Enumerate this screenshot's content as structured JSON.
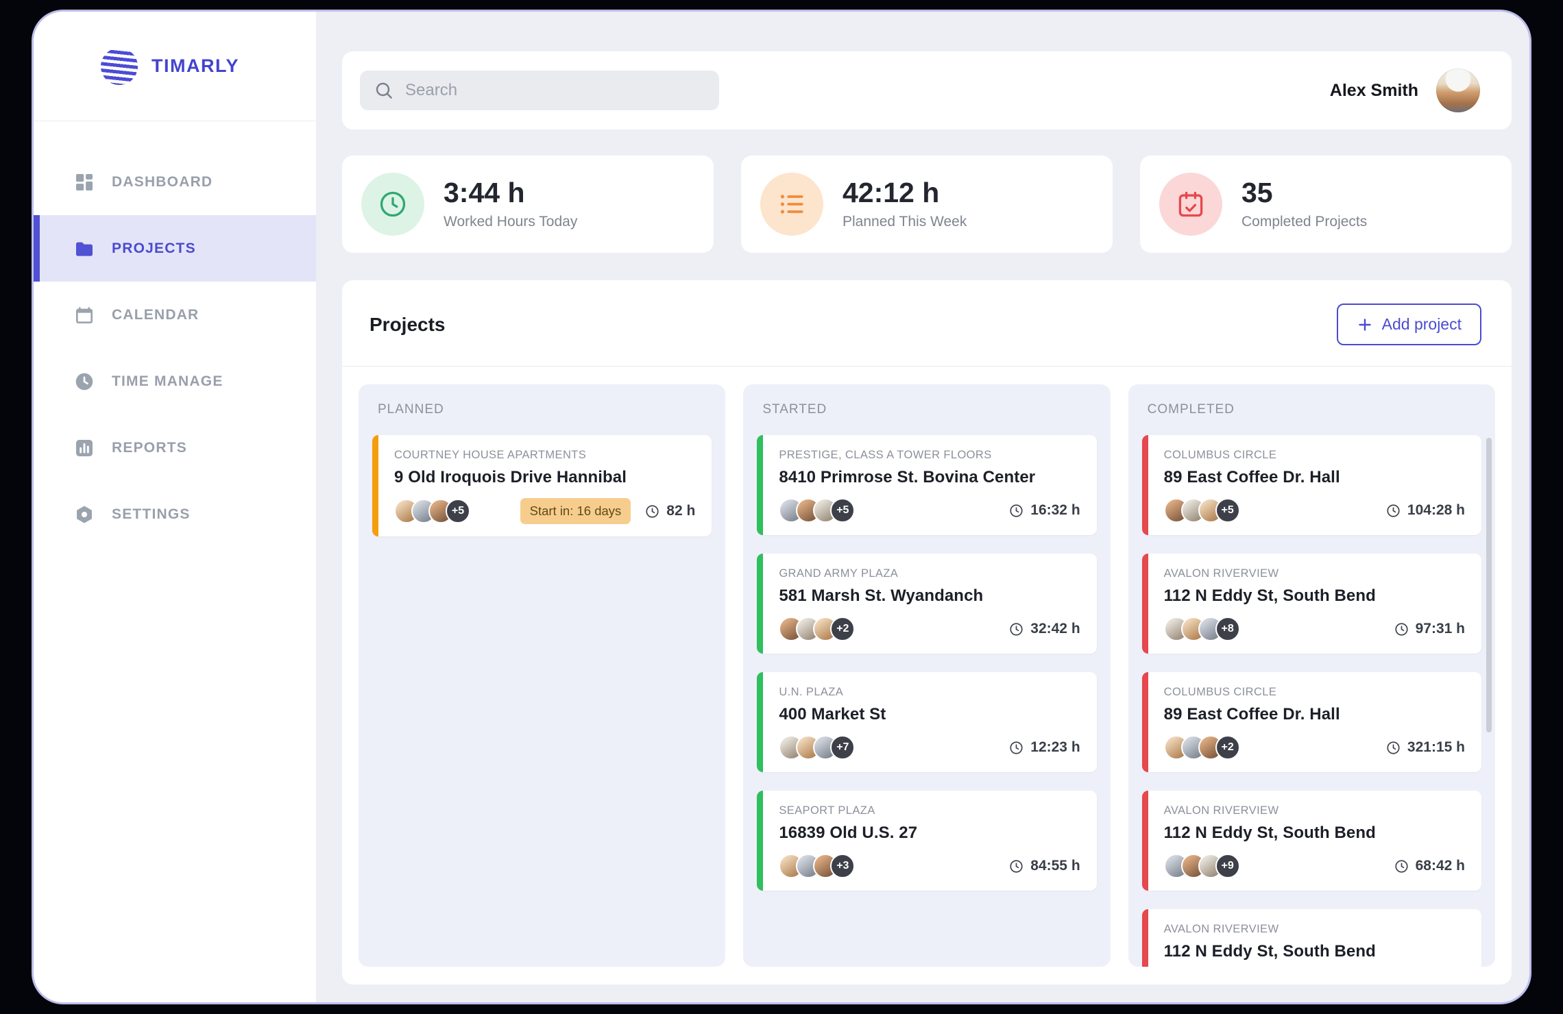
{
  "brand": {
    "name": "TIMARLY"
  },
  "topbar": {
    "search_placeholder": "Search",
    "user_name": "Alex Smith"
  },
  "sidebar": {
    "active_index": 1,
    "items": [
      {
        "label": "DASHBOARD"
      },
      {
        "label": "PROJECTS"
      },
      {
        "label": "CALENDAR"
      },
      {
        "label": "TIME MANAGE"
      },
      {
        "label": "REPORTS"
      },
      {
        "label": "SETTINGS"
      }
    ]
  },
  "stats": [
    {
      "value": "3:44 h",
      "label": "Worked Hours Today",
      "icon": "clock-icon",
      "icon_color": "#2fa872",
      "icon_bg": "#ddf3e6"
    },
    {
      "value": "42:12 h",
      "label": "Planned This Week",
      "icon": "list-icon",
      "icon_color": "#f08c3a",
      "icon_bg": "#fde4cd"
    },
    {
      "value": "35",
      "label": "Completed Projects",
      "icon": "calendar-check-icon",
      "icon_color": "#e5484d",
      "icon_bg": "#fbd7d7"
    }
  ],
  "projects": {
    "title": "Projects",
    "add_button_label": "Add project",
    "columns": [
      {
        "name": "PLANNED",
        "accent": "#f59e0b",
        "has_scrollbar": false,
        "cards": [
          {
            "title": "COURTNEY HOUSE APARTMENTS",
            "address": "9 Old Iroquois Drive Hannibal",
            "extra": "+5",
            "badge": "Start in: 16 days",
            "hours": "82 h"
          }
        ]
      },
      {
        "name": "STARTED",
        "accent": "#2fbf5e",
        "has_scrollbar": false,
        "cards": [
          {
            "title": "PRESTIGE, CLASS A TOWER FLOORS",
            "address": "8410 Primrose St. Bovina Center",
            "extra": "+5",
            "hours": "16:32 h"
          },
          {
            "title": "GRAND ARMY PLAZA",
            "address": "581 Marsh St. Wyandanch",
            "extra": "+2",
            "hours": "32:42 h"
          },
          {
            "title": "U.N. PLAZA",
            "address": "400 Market St",
            "extra": "+7",
            "hours": "12:23 h"
          },
          {
            "title": "SEAPORT PLAZA",
            "address": "16839 Old U.S. 27",
            "extra": "+3",
            "hours": "84:55 h"
          }
        ]
      },
      {
        "name": "COMPLETED",
        "accent": "#e5484d",
        "has_scrollbar": true,
        "cards": [
          {
            "title": "COLUMBUS CIRCLE",
            "address": "89 East Coffee Dr. Hall",
            "extra": "+5",
            "hours": "104:28 h"
          },
          {
            "title": "AVALON RIVERVIEW",
            "address": "112 N Eddy St, South Bend",
            "extra": "+8",
            "hours": "97:31 h"
          },
          {
            "title": "COLUMBUS CIRCLE",
            "address": "89 East Coffee Dr. Hall",
            "extra": "+2",
            "hours": "321:15 h"
          },
          {
            "title": "AVALON RIVERVIEW",
            "address": "112 N Eddy St, South Bend",
            "extra": "+9",
            "hours": "68:42 h"
          },
          {
            "title": "AVALON RIVERVIEW",
            "address": "112 N Eddy St, South Bend",
            "extra": "",
            "hours": ""
          }
        ]
      }
    ]
  }
}
